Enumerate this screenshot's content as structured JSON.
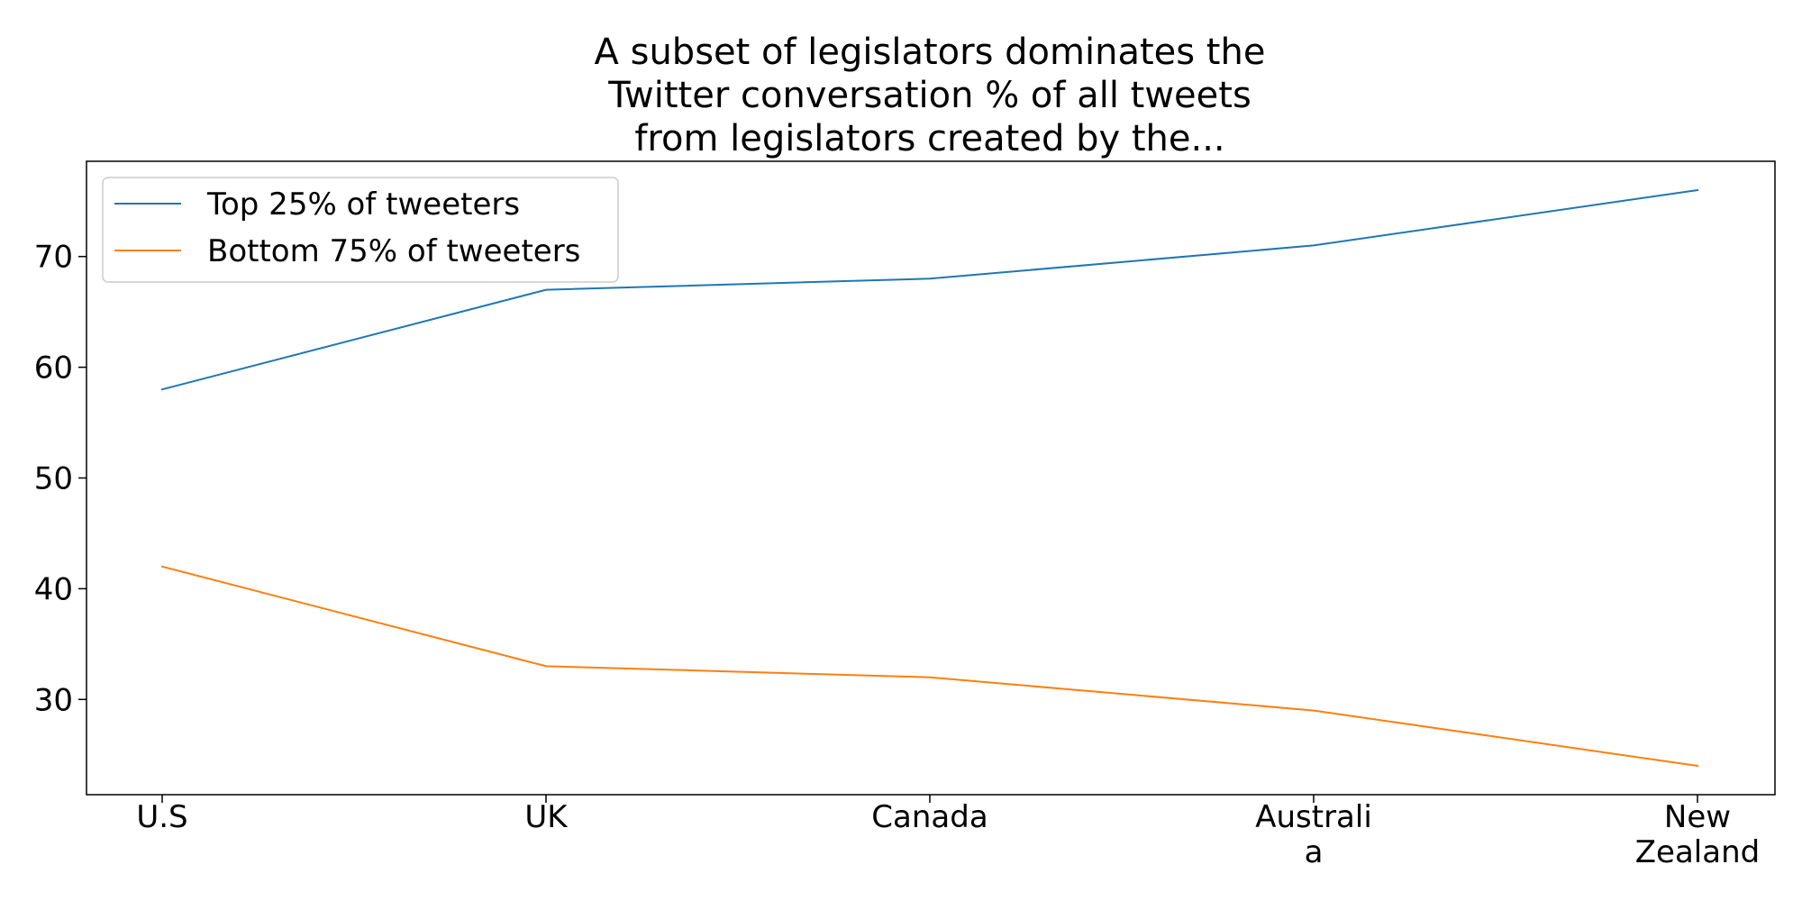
{
  "chart_data": {
    "type": "line",
    "title_lines": [
      "A subset of legislators dominates the",
      "Twitter conversation % of all tweets",
      "from legislators created by the..."
    ],
    "categories": [
      [
        "U.S"
      ],
      [
        "UK"
      ],
      [
        "Canada"
      ],
      [
        "Australi",
        "a"
      ],
      [
        "New",
        "Zealand"
      ]
    ],
    "series": [
      {
        "name": "Top 25% of tweeters",
        "color": "#1f77b4",
        "values": [
          58,
          67,
          68,
          71,
          76
        ]
      },
      {
        "name": "Bottom 75% of tweeters",
        "color": "#ff7f0e",
        "values": [
          42,
          33,
          32,
          29,
          24
        ]
      }
    ],
    "yticks": [
      30,
      40,
      50,
      60,
      70
    ],
    "ylim": [
      21.4,
      78.6
    ],
    "grid": false,
    "legend_position": "upper-left"
  }
}
